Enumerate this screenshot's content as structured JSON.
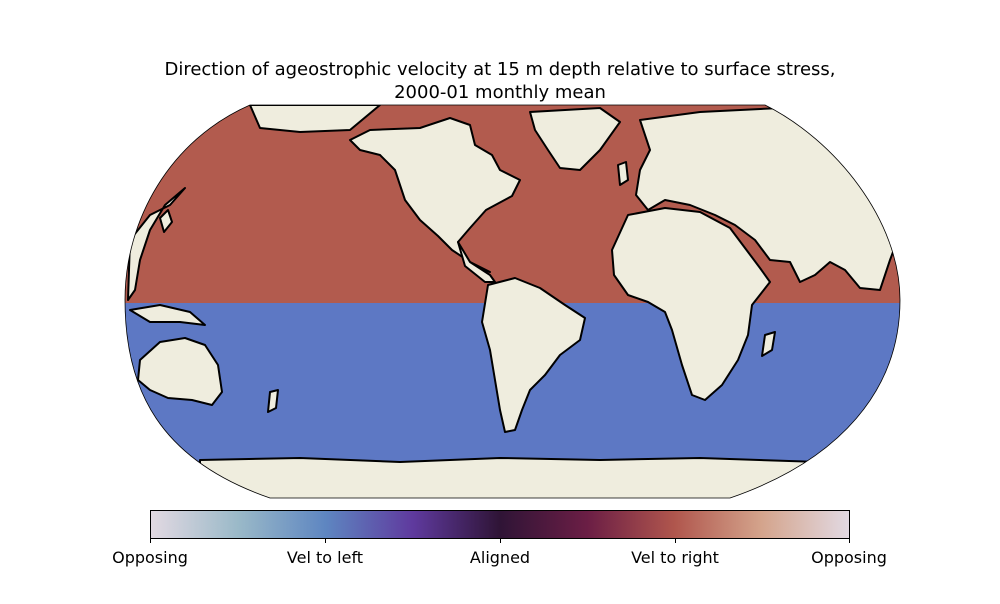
{
  "title": {
    "line1": "Direction of ageostrophic velocity at 15 m depth relative to surface stress,",
    "line2": "2000-01 monthly mean"
  },
  "map": {
    "projection": "robinson",
    "colors": {
      "land": "#efedde",
      "northern_ocean": "#b25b4e",
      "southern_ocean": "#5d78c4",
      "coast": "#000000"
    }
  },
  "colorbar": {
    "colormap": "twilight",
    "colors": [
      "#e2d9e2",
      "#9ab9c8",
      "#5e86c1",
      "#5f3a9e",
      "#2f1436",
      "#6b1e45",
      "#b0564d",
      "#d4a48c",
      "#e2d9e2"
    ],
    "tick_labels": [
      "Opposing",
      "Vel to left",
      "Aligned",
      "Vel to right",
      "Opposing"
    ]
  }
}
